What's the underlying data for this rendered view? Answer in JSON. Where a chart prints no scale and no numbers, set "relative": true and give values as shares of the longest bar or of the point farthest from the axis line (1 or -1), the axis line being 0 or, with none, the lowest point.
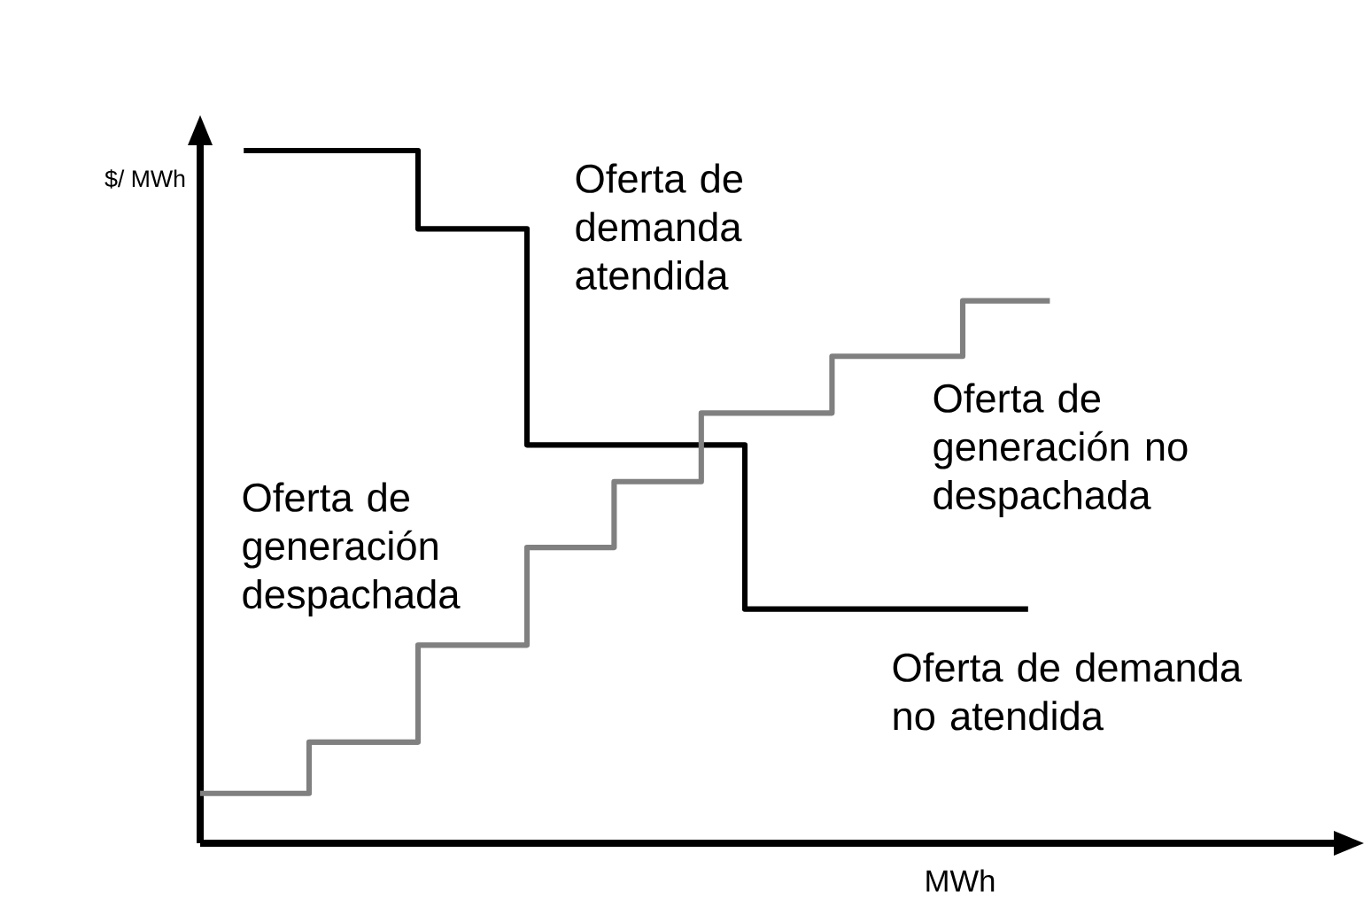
{
  "chart_data": {
    "type": "step",
    "relative": true,
    "xlabel": "MWh",
    "ylabel": "$/ MWh",
    "categories": [
      null,
      null,
      null,
      null,
      null,
      null,
      null,
      null,
      null,
      null,
      null,
      null,
      null,
      null,
      null,
      null,
      null,
      null,
      null,
      null,
      null,
      null,
      null,
      null,
      null,
      null,
      null,
      null,
      null,
      null,
      null,
      null,
      null,
      null,
      null,
      null,
      null,
      null,
      null,
      null
    ],
    "series": [
      {
        "color": "#000000",
        "values": [
          null,
          null,
          1,
          1,
          1,
          1,
          1,
          1,
          1,
          1,
          0.887,
          0.887,
          0.887,
          0.887,
          0.887,
          0.575,
          0.575,
          0.575,
          0.575,
          0.575,
          0.575,
          0.575,
          0.575,
          0.575,
          0.575,
          0.338,
          0.338,
          0.338,
          0.338,
          0.338,
          0.338,
          0.338,
          0.338,
          0.338,
          0.338,
          0.338,
          0.338,
          0.338,
          0.338,
          null
        ]
      },
      {
        "color": "#808080",
        "values": [
          0.072,
          0.072,
          0.072,
          0.072,
          0.072,
          0.146,
          0.146,
          0.146,
          0.146,
          0.146,
          0.286,
          0.286,
          0.286,
          0.286,
          0.286,
          0.427,
          0.427,
          0.427,
          0.427,
          0.522,
          0.522,
          0.522,
          0.522,
          0.621,
          0.621,
          0.621,
          0.621,
          0.621,
          0.621,
          0.703,
          0.703,
          0.703,
          0.703,
          0.703,
          0.703,
          0.783,
          0.783,
          0.783,
          0.783,
          0.783
        ]
      }
    ],
    "annotations": [
      "Oferta de demanda atendida",
      "Oferta de generación no despachada",
      "Oferta de generación despachada",
      "Oferta de demanda no atendida"
    ]
  }
}
